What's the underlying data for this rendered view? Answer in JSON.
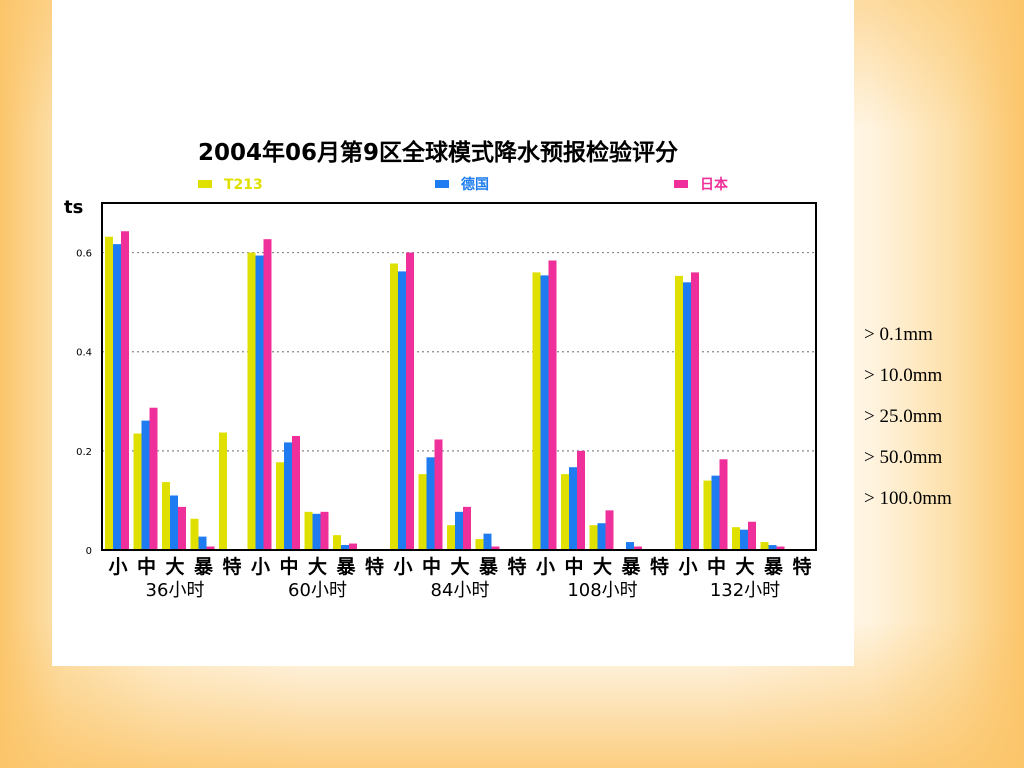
{
  "chart_data": {
    "type": "bar",
    "title": "2004年06月第9区全球模式降水预报检验评分",
    "ylabel": "ts",
    "ylim": [
      0,
      0.7
    ],
    "y_ticks": [
      "0",
      "0.2",
      "0.4",
      "0.6"
    ],
    "y_tick_values": [
      0,
      0.2,
      0.4,
      0.6
    ],
    "grid": true,
    "legend_position": "top",
    "categories": [
      "小",
      "中",
      "大",
      "暴",
      "特",
      "小",
      "中",
      "大",
      "暴",
      "特",
      "小",
      "中",
      "大",
      "暴",
      "特",
      "小",
      "中",
      "大",
      "暴",
      "特",
      "小",
      "中",
      "大",
      "暴",
      "特"
    ],
    "groups": [
      "36小时",
      "60小时",
      "84小时",
      "108小时",
      "132小时"
    ],
    "series": [
      {
        "name": "T213",
        "color": "#e0e000",
        "values": [
          0.632,
          0.235,
          0.137,
          0.063,
          0.237,
          0.6,
          0.177,
          0.077,
          0.03,
          0.0,
          0.578,
          0.153,
          0.05,
          0.022,
          0.0,
          0.56,
          0.153,
          0.05,
          0.0,
          0.0,
          0.553,
          0.14,
          0.046,
          0.016,
          0.0
        ]
      },
      {
        "name": "德国",
        "color": "#1e7cf0",
        "values": [
          0.617,
          0.261,
          0.11,
          0.027,
          0.0,
          0.594,
          0.217,
          0.073,
          0.01,
          0.0,
          0.562,
          0.187,
          0.077,
          0.033,
          0.0,
          0.554,
          0.167,
          0.054,
          0.016,
          0.0,
          0.54,
          0.15,
          0.041,
          0.01,
          0.0
        ]
      },
      {
        "name": "日本",
        "color": "#f0309a",
        "values": [
          0.643,
          0.287,
          0.087,
          0.007,
          0.0,
          0.627,
          0.23,
          0.077,
          0.013,
          0.0,
          0.6,
          0.223,
          0.087,
          0.007,
          0.0,
          0.584,
          0.2,
          0.08,
          0.007,
          0.0,
          0.56,
          0.183,
          0.057,
          0.007,
          0.0
        ]
      }
    ]
  },
  "side_notes": [
    "> 0.1mm",
    "> 10.0mm",
    "> 25.0mm",
    "> 50.0mm",
    "> 100.0mm"
  ]
}
